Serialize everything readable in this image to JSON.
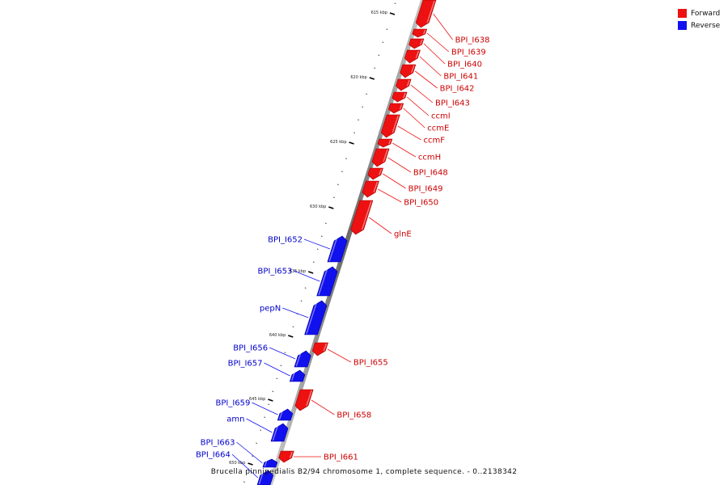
{
  "legend": {
    "forward_label": "Forward",
    "reverse_label": "Reverse",
    "forward_color": "#ee1111",
    "reverse_color": "#1111ee"
  },
  "caption": "Brucella pinnipedialis B2/94 chromosome 1, complete sequence. - 0..2138342",
  "scale_ticks": [
    "615 kbp",
    "620 kbp",
    "625 kbp",
    "630 kbp",
    "635 kbp",
    "640 kbp",
    "645 kbp",
    "650 kbp"
  ],
  "forward_genes": [
    "BPI_I638",
    "BPI_I639",
    "BPI_I640",
    "BPI_I641",
    "BPI_I642",
    "BPI_I643",
    "ccmI",
    "ccmE",
    "ccmF",
    "ccmH",
    "BPI_I648",
    "BPI_I649",
    "BPI_I650",
    "glnE",
    "BPI_I655",
    "BPI_I658",
    "BPI_I661"
  ],
  "reverse_genes": [
    "BPI_I652",
    "BPI_I653",
    "pepN",
    "BPI_I656",
    "BPI_I657",
    "BPI_I659",
    "amn",
    "BPI_I663",
    "BPI_I664"
  ]
}
